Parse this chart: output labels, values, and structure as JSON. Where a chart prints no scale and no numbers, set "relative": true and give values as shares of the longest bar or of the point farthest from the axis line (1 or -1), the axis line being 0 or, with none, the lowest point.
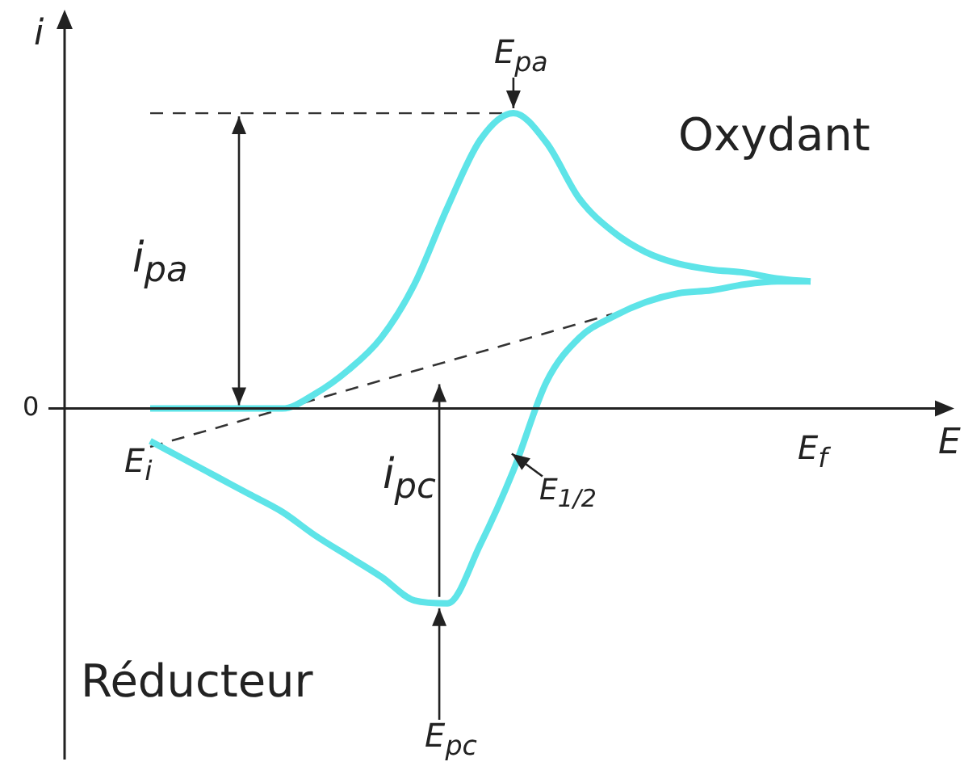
{
  "chart_data": {
    "type": "line",
    "relative": true,
    "xlabel": "E",
    "ylabel": "i",
    "marker": "none",
    "legend": false,
    "categories": [
      null,
      null,
      null,
      null,
      null,
      null,
      null,
      null,
      null,
      null,
      null,
      null,
      null,
      null,
      null,
      null,
      null,
      null,
      null,
      null,
      null
    ],
    "series": [
      {
        "color": "#5ee4e8",
        "values": [
          0,
          0,
          0,
          0,
          0,
          0.05,
          0.13,
          0.24,
          0.42,
          0.68,
          0.91,
          1,
          0.9,
          0.71,
          0.6,
          0.53,
          0.49,
          0.47,
          0.46,
          0.44,
          0.43
        ]
      },
      {
        "color": "#5ee4e8",
        "values": [
          -0.11,
          -0.17,
          -0.23,
          -0.29,
          -0.35,
          -0.43,
          -0.5,
          -0.57,
          -0.65,
          -0.66,
          -0.46,
          -0.21,
          0.09,
          0.24,
          0.31,
          0.36,
          0.39,
          0.4,
          0.42,
          0.43,
          0.43
        ]
      },
      {
        "type": "line",
        "color": "#333333",
        "line_style": "dashed",
        "values": [
          -0.13,
          null,
          null,
          null,
          null,
          null,
          null,
          null,
          null,
          null,
          null,
          null,
          null,
          null,
          0.32,
          null,
          null,
          null,
          null,
          null,
          null
        ]
      },
      {
        "type": "line",
        "color": "#333333",
        "line_style": "dashed",
        "values": [
          1,
          null,
          null,
          null,
          null,
          null,
          null,
          null,
          null,
          null,
          null,
          1,
          null,
          null,
          null,
          null,
          null,
          null,
          null,
          null,
          null
        ]
      }
    ],
    "annotations": [
      "0",
      "Oxydant",
      "Réducteur",
      "E$_{pa}$",
      "i$_{pa}$",
      "E$_{i}$",
      "i$_{pc}$",
      "E$_{f}$",
      "E$_{1/2}$",
      "E$_{pc}$"
    ]
  }
}
